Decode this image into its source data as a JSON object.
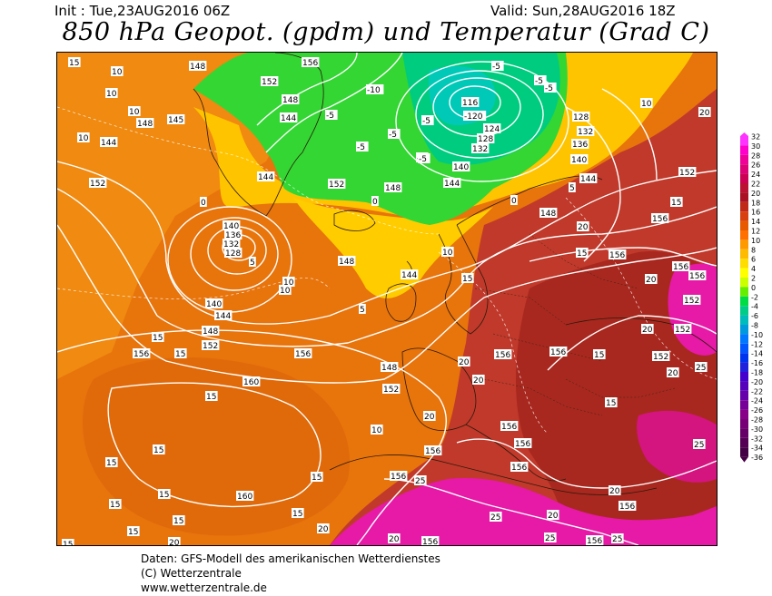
{
  "header": {
    "init": "Init : Tue,23AUG2016 06Z",
    "valid": "Valid: Sun,28AUG2016 18Z",
    "title": "850 hPa Geopot. (gpdm) und Temperatur (Grad C)"
  },
  "legend": {
    "labels": [
      "32",
      "30",
      "28",
      "26",
      "24",
      "22",
      "20",
      "18",
      "16",
      "14",
      "12",
      "10",
      "8",
      "6",
      "4",
      "2",
      "0",
      "-2",
      "-4",
      "-6",
      "-8",
      "-10",
      "-12",
      "-14",
      "-16",
      "-18",
      "-20",
      "-22",
      "-24",
      "-26",
      "-28",
      "-30",
      "-32",
      "-34",
      "-36"
    ],
    "colors": [
      "#ff33ff",
      "#ff00cc",
      "#ee0099",
      "#dd0077",
      "#cc0055",
      "#bb1133",
      "#aa1122",
      "#c02818",
      "#d84010",
      "#e85a00",
      "#ff7000",
      "#ff9900",
      "#ffbb00",
      "#ffdd00",
      "#ffff00",
      "#ccff00",
      "#66ee00",
      "#00dd44",
      "#00cc88",
      "#00bbbb",
      "#0099dd",
      "#0077ff",
      "#0055ff",
      "#0033ee",
      "#2222dd",
      "#4400cc",
      "#5500bb",
      "#6600aa",
      "#770099",
      "#880088",
      "#770077",
      "#660066",
      "#550055",
      "#440044"
    ]
  },
  "map": {
    "geopotential_labels": [
      {
        "text": "148",
        "lx": 146,
        "ly": 10
      },
      {
        "text": "152",
        "lx": 225,
        "ly": 27
      },
      {
        "text": "156",
        "lx": 270,
        "ly": 6
      },
      {
        "text": "148",
        "lx": 248,
        "ly": 47
      },
      {
        "text": "144",
        "lx": 246,
        "ly": 67
      },
      {
        "text": "148",
        "lx": 88,
        "ly": 73
      },
      {
        "text": "145",
        "lx": 122,
        "ly": 69
      },
      {
        "text": "144",
        "lx": 48,
        "ly": 94
      },
      {
        "text": "152",
        "lx": 36,
        "ly": 139
      },
      {
        "text": "144",
        "lx": 221,
        "ly": 132
      },
      {
        "text": "140",
        "lx": 183,
        "ly": 186
      },
      {
        "text": "136",
        "lx": 185,
        "ly": 196
      },
      {
        "text": "132",
        "lx": 183,
        "ly": 206
      },
      {
        "text": "128",
        "lx": 185,
        "ly": 216
      },
      {
        "text": "140",
        "lx": 164,
        "ly": 272
      },
      {
        "text": "144",
        "lx": 174,
        "ly": 285
      },
      {
        "text": "148",
        "lx": 160,
        "ly": 302
      },
      {
        "text": "152",
        "lx": 160,
        "ly": 318
      },
      {
        "text": "156",
        "lx": 84,
        "ly": 327
      },
      {
        "text": "156",
        "lx": 262,
        "ly": 327
      },
      {
        "text": "160",
        "lx": 205,
        "ly": 358
      },
      {
        "text": "160",
        "lx": 198,
        "ly": 484
      },
      {
        "text": "152",
        "lx": 299,
        "ly": 140
      },
      {
        "text": "148",
        "lx": 361,
        "ly": 144
      },
      {
        "text": "148",
        "lx": 310,
        "ly": 225
      },
      {
        "text": "144",
        "lx": 379,
        "ly": 240
      },
      {
        "text": "148",
        "lx": 357,
        "ly": 342
      },
      {
        "text": "152",
        "lx": 359,
        "ly": 366
      },
      {
        "text": "156",
        "lx": 367,
        "ly": 462
      },
      {
        "text": "116",
        "lx": 446,
        "ly": 50
      },
      {
        "text": "-120",
        "lx": 448,
        "ly": 65
      },
      {
        "text": "124",
        "lx": 470,
        "ly": 79
      },
      {
        "text": "128",
        "lx": 463,
        "ly": 90
      },
      {
        "text": "132",
        "lx": 457,
        "ly": 101
      },
      {
        "text": "140",
        "lx": 436,
        "ly": 121
      },
      {
        "text": "144",
        "lx": 426,
        "ly": 139
      },
      {
        "text": "128",
        "lx": 568,
        "ly": 66
      },
      {
        "text": "132",
        "lx": 573,
        "ly": 82
      },
      {
        "text": "136",
        "lx": 567,
        "ly": 96
      },
      {
        "text": "140",
        "lx": 566,
        "ly": 113
      },
      {
        "text": "144",
        "lx": 576,
        "ly": 134
      },
      {
        "text": "148",
        "lx": 532,
        "ly": 172
      },
      {
        "text": "152",
        "lx": 685,
        "ly": 127
      },
      {
        "text": "156",
        "lx": 655,
        "ly": 178
      },
      {
        "text": "156",
        "lx": 608,
        "ly": 218
      },
      {
        "text": "156",
        "lx": 678,
        "ly": 231
      },
      {
        "text": "156",
        "lx": 696,
        "ly": 241
      },
      {
        "text": "152",
        "lx": 690,
        "ly": 268
      },
      {
        "text": "152",
        "lx": 680,
        "ly": 300
      },
      {
        "text": "152",
        "lx": 656,
        "ly": 330
      },
      {
        "text": "156",
        "lx": 482,
        "ly": 328
      },
      {
        "text": "156",
        "lx": 543,
        "ly": 325
      },
      {
        "text": "156",
        "lx": 489,
        "ly": 407
      },
      {
        "text": "156",
        "lx": 504,
        "ly": 426
      },
      {
        "text": "156",
        "lx": 500,
        "ly": 452
      },
      {
        "text": "156",
        "lx": 405,
        "ly": 434
      },
      {
        "text": "156",
        "lx": 619,
        "ly": 495
      },
      {
        "text": "156",
        "lx": 583,
        "ly": 533
      },
      {
        "text": "156",
        "lx": 402,
        "ly": 534
      }
    ],
    "temperature_labels": [
      {
        "text": "15",
        "lx": 13,
        "ly": 6
      },
      {
        "text": "10",
        "lx": 60,
        "ly": 16
      },
      {
        "text": "10",
        "lx": 54,
        "ly": 40
      },
      {
        "text": "10",
        "lx": 79,
        "ly": 60
      },
      {
        "text": "10",
        "lx": 23,
        "ly": 89
      },
      {
        "text": "10",
        "lx": 643,
        "ly": 51
      },
      {
        "text": "20",
        "lx": 707,
        "ly": 61
      },
      {
        "text": "10",
        "lx": 424,
        "ly": 215
      },
      {
        "text": "10",
        "lx": 245,
        "ly": 257
      },
      {
        "text": "15",
        "lx": 446,
        "ly": 244
      },
      {
        "text": "15",
        "lx": 676,
        "ly": 160
      },
      {
        "text": "20",
        "lx": 573,
        "ly": 187
      },
      {
        "text": "15",
        "lx": 572,
        "ly": 216
      },
      {
        "text": "20",
        "lx": 648,
        "ly": 245
      },
      {
        "text": "20",
        "lx": 644,
        "ly": 300
      },
      {
        "text": "20",
        "lx": 672,
        "ly": 348
      },
      {
        "text": "25",
        "lx": 703,
        "ly": 342
      },
      {
        "text": "15",
        "lx": 591,
        "ly": 328
      },
      {
        "text": "15",
        "lx": 604,
        "ly": 381
      },
      {
        "text": "20",
        "lx": 442,
        "ly": 336
      },
      {
        "text": "20",
        "lx": 458,
        "ly": 356
      },
      {
        "text": "20",
        "lx": 404,
        "ly": 396
      },
      {
        "text": "10",
        "lx": 346,
        "ly": 411
      },
      {
        "text": "15",
        "lx": 105,
        "ly": 309
      },
      {
        "text": "15",
        "lx": 130,
        "ly": 327
      },
      {
        "text": "15",
        "lx": 164,
        "ly": 374
      },
      {
        "text": "15",
        "lx": 106,
        "ly": 433
      },
      {
        "text": "15",
        "lx": 54,
        "ly": 447
      },
      {
        "text": "15",
        "lx": 112,
        "ly": 482
      },
      {
        "text": "15",
        "lx": 58,
        "ly": 493
      },
      {
        "text": "15",
        "lx": 280,
        "ly": 463
      },
      {
        "text": "15",
        "lx": 259,
        "ly": 503
      },
      {
        "text": "15",
        "lx": 128,
        "ly": 511
      },
      {
        "text": "15",
        "lx": 78,
        "ly": 523
      },
      {
        "text": "15",
        "lx": 6,
        "ly": 537
      },
      {
        "text": "20",
        "lx": 123,
        "ly": 535
      },
      {
        "text": "20",
        "lx": 287,
        "ly": 520
      },
      {
        "text": "20",
        "lx": 365,
        "ly": 531
      },
      {
        "text": "25",
        "lx": 394,
        "ly": 467
      },
      {
        "text": "25",
        "lx": 701,
        "ly": 427
      },
      {
        "text": "25",
        "lx": 477,
        "ly": 507
      },
      {
        "text": "25",
        "lx": 537,
        "ly": 530
      },
      {
        "text": "25",
        "lx": 611,
        "ly": 531
      },
      {
        "text": "20",
        "lx": 608,
        "ly": 478
      },
      {
        "text": "20",
        "lx": 540,
        "ly": 505
      },
      {
        "text": "10",
        "lx": 249,
        "ly": 248
      },
      {
        "text": "5",
        "lx": 333,
        "ly": 278
      },
      {
        "text": "5",
        "lx": 212,
        "ly": 226
      },
      {
        "text": "0",
        "lx": 158,
        "ly": 160
      },
      {
        "text": "0",
        "lx": 347,
        "ly": 159
      },
      {
        "text": "0",
        "lx": 500,
        "ly": 158
      },
      {
        "text": "5",
        "lx": 564,
        "ly": 144
      },
      {
        "text": "-5",
        "lx": 479,
        "ly": 10
      },
      {
        "text": "-5",
        "lx": 526,
        "ly": 26
      },
      {
        "text": "-5",
        "lx": 537,
        "ly": 34
      },
      {
        "text": "-5",
        "lx": 402,
        "ly": 70
      },
      {
        "text": "-5",
        "lx": 365,
        "ly": 85
      },
      {
        "text": "-5",
        "lx": 330,
        "ly": 99
      },
      {
        "text": "-5",
        "lx": 296,
        "ly": 64
      },
      {
        "text": "-5",
        "lx": 396,
        "ly": 111
      },
      {
        "text": "-5",
        "lx": 398,
        "ly": 112
      },
      {
        "text": "-10",
        "lx": 341,
        "ly": 36
      }
    ]
  },
  "footer": {
    "line1": "Daten: GFS-Modell des amerikanischen Wetterdienstes",
    "line2": "(C) Wetterzentrale",
    "line3": "www.wetterzentrale.de"
  }
}
